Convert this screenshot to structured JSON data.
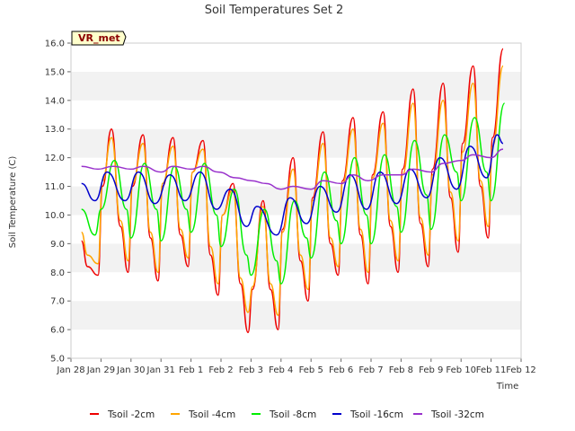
{
  "chart_data": {
    "type": "line",
    "title": "Soil Temperatures Set 2",
    "xlabel": "Time",
    "ylabel": "Soil Temperature (C)",
    "ylim": [
      5.0,
      16.0
    ],
    "y_ticks": [
      "5.0",
      "6.0",
      "7.0",
      "8.0",
      "9.0",
      "10.0",
      "11.0",
      "12.0",
      "13.0",
      "14.0",
      "15.0",
      "16.0"
    ],
    "xlim": [
      0,
      15
    ],
    "x_ticks": [
      "Jan 28",
      "Jan 29",
      "Jan 30",
      "Jan 31",
      "Feb 1",
      "Feb 2",
      "Feb 3",
      "Feb 4",
      "Feb 5",
      "Feb 6",
      "Feb 7",
      "Feb 8",
      "Feb 9",
      "Feb 10",
      "Feb 11",
      "Feb 12"
    ],
    "grid": "horizontal bands",
    "legend_position": "bottom",
    "station_label": "VR_met",
    "series": [
      {
        "name": "Tsoil -2cm",
        "color": "#ee0000",
        "x": [
          0.35,
          0.55,
          0.9,
          1.05,
          1.35,
          1.65,
          1.9,
          2.05,
          2.4,
          2.65,
          2.9,
          3.05,
          3.4,
          3.65,
          3.9,
          4.05,
          4.4,
          4.65,
          4.9,
          5.05,
          5.4,
          5.65,
          5.9,
          6.05,
          6.4,
          6.65,
          6.9,
          7.05,
          7.4,
          7.65,
          7.9,
          8.05,
          8.4,
          8.65,
          8.9,
          9.05,
          9.4,
          9.65,
          9.9,
          10.05,
          10.4,
          10.65,
          10.9,
          11.05,
          11.4,
          11.65,
          11.9,
          12.05,
          12.4,
          12.65,
          12.9,
          13.05,
          13.4,
          13.65,
          13.9,
          14.05,
          14.4
        ],
        "y": [
          9.1,
          8.2,
          7.9,
          11.0,
          13.0,
          9.6,
          8.0,
          11.0,
          12.8,
          9.2,
          7.7,
          11.0,
          12.7,
          9.3,
          8.2,
          11.5,
          12.6,
          8.6,
          7.2,
          10.0,
          11.1,
          7.6,
          5.9,
          7.4,
          10.5,
          7.4,
          6.0,
          9.5,
          12.0,
          8.4,
          7.0,
          10.6,
          12.9,
          9.0,
          7.9,
          11.2,
          13.4,
          9.3,
          7.6,
          11.4,
          13.6,
          9.6,
          8.0,
          11.6,
          14.4,
          9.7,
          8.2,
          11.6,
          14.6,
          10.6,
          8.7,
          12.5,
          15.2,
          11.0,
          9.2,
          12.7,
          15.8
        ]
      },
      {
        "name": "Tsoil -4cm",
        "color": "#ffa500",
        "x": [
          0.35,
          0.55,
          0.9,
          1.05,
          1.35,
          1.65,
          1.9,
          2.05,
          2.4,
          2.65,
          2.9,
          3.05,
          3.4,
          3.65,
          3.9,
          4.05,
          4.4,
          4.65,
          4.9,
          5.05,
          5.4,
          5.65,
          5.9,
          6.05,
          6.4,
          6.65,
          6.9,
          7.05,
          7.4,
          7.65,
          7.9,
          8.05,
          8.4,
          8.65,
          8.9,
          9.05,
          9.4,
          9.65,
          9.9,
          10.05,
          10.4,
          10.65,
          10.9,
          11.05,
          11.4,
          11.65,
          11.9,
          12.05,
          12.4,
          12.65,
          12.9,
          13.05,
          13.4,
          13.65,
          13.9,
          14.05,
          14.4
        ],
        "y": [
          9.4,
          8.6,
          8.3,
          11.2,
          12.7,
          9.8,
          8.4,
          11.1,
          12.5,
          9.4,
          8.0,
          11.1,
          12.4,
          9.5,
          8.5,
          11.5,
          12.3,
          8.9,
          7.6,
          10.0,
          10.9,
          7.8,
          6.6,
          7.5,
          10.3,
          7.6,
          6.5,
          9.4,
          11.6,
          8.6,
          7.4,
          10.5,
          12.5,
          9.2,
          8.2,
          11.1,
          13.0,
          9.5,
          8.0,
          11.3,
          13.2,
          9.8,
          8.4,
          11.4,
          13.9,
          9.9,
          8.6,
          11.4,
          14.0,
          10.8,
          9.1,
          12.2,
          14.6,
          11.2,
          9.6,
          12.4,
          15.2
        ]
      },
      {
        "name": "Tsoil -8cm",
        "color": "#00ee00",
        "x": [
          0.35,
          0.8,
          1.0,
          1.45,
          1.85,
          2.0,
          2.45,
          2.85,
          3.0,
          3.45,
          3.85,
          4.0,
          4.45,
          4.85,
          5.0,
          5.45,
          5.85,
          6.0,
          6.45,
          6.85,
          7.0,
          7.45,
          7.85,
          8.0,
          8.45,
          8.85,
          9.0,
          9.45,
          9.85,
          10.0,
          10.45,
          10.85,
          11.0,
          11.45,
          11.85,
          12.0,
          12.45,
          12.85,
          13.0,
          13.45,
          13.85,
          14.0,
          14.45
        ],
        "y": [
          10.2,
          9.3,
          10.2,
          11.9,
          10.2,
          9.2,
          11.8,
          10.2,
          9.1,
          11.7,
          10.2,
          9.4,
          11.8,
          10.0,
          8.9,
          10.9,
          8.6,
          7.9,
          10.2,
          8.4,
          7.6,
          10.5,
          9.2,
          8.5,
          11.5,
          9.8,
          9.0,
          12.0,
          10.0,
          9.0,
          12.1,
          10.3,
          9.4,
          12.6,
          10.7,
          9.5,
          12.8,
          11.5,
          10.5,
          13.4,
          11.5,
          10.5,
          13.9
        ]
      },
      {
        "name": "Tsoil -16cm",
        "color": "#0000cc",
        "x": [
          0.35,
          0.8,
          1.2,
          1.8,
          2.25,
          2.8,
          3.3,
          3.8,
          4.3,
          4.85,
          5.3,
          5.85,
          6.2,
          6.85,
          7.3,
          7.85,
          8.3,
          8.85,
          9.3,
          9.85,
          10.3,
          10.85,
          11.3,
          11.85,
          12.3,
          12.85,
          13.3,
          13.85,
          14.2,
          14.4
        ],
        "y": [
          11.1,
          10.5,
          11.5,
          10.5,
          11.5,
          10.4,
          11.4,
          10.5,
          11.5,
          10.2,
          10.9,
          9.6,
          10.3,
          9.3,
          10.6,
          9.7,
          11.0,
          10.1,
          11.4,
          10.2,
          11.5,
          10.4,
          11.6,
          10.6,
          12.0,
          10.9,
          12.4,
          11.3,
          12.8,
          12.5
        ]
      },
      {
        "name": "Tsoil -32cm",
        "color": "#9932cc",
        "x": [
          0.35,
          0.9,
          1.4,
          2.0,
          2.4,
          3.0,
          3.4,
          4.0,
          4.4,
          4.9,
          5.5,
          6.0,
          6.5,
          7.0,
          7.4,
          8.0,
          8.4,
          9.0,
          9.4,
          9.9,
          10.4,
          11.0,
          11.4,
          12.0,
          12.4,
          13.0,
          13.4,
          14.0,
          14.4
        ],
        "y": [
          11.7,
          11.6,
          11.7,
          11.6,
          11.7,
          11.5,
          11.7,
          11.6,
          11.7,
          11.5,
          11.3,
          11.2,
          11.1,
          10.9,
          11.0,
          10.9,
          11.2,
          11.1,
          11.4,
          11.2,
          11.4,
          11.4,
          11.6,
          11.5,
          11.8,
          11.9,
          12.1,
          12.0,
          12.3
        ]
      }
    ]
  }
}
